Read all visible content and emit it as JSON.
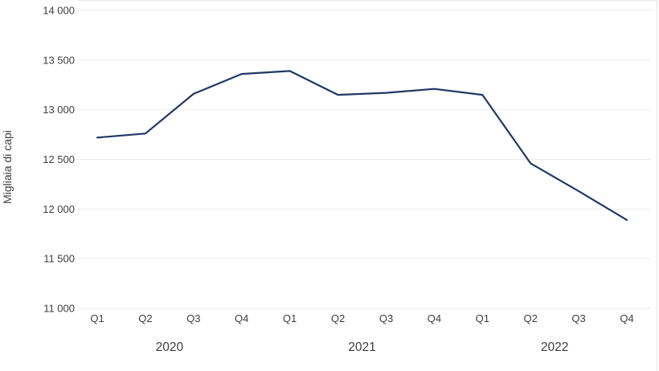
{
  "chart_data": {
    "type": "line",
    "title": "",
    "xlabel": "",
    "ylabel": "Migliaia di capi",
    "ylim": [
      11000,
      14000
    ],
    "ytick_step": 500,
    "grid": "horizontal",
    "legend_position": "none",
    "yticks": [
      {
        "value": 11000,
        "label": "11 000"
      },
      {
        "value": 11500,
        "label": "11 500"
      },
      {
        "value": 12000,
        "label": "12 000"
      },
      {
        "value": 12500,
        "label": "12 500"
      },
      {
        "value": 13000,
        "label": "13 000"
      },
      {
        "value": 13500,
        "label": "13 500"
      },
      {
        "value": 14000,
        "label": "14 000"
      }
    ],
    "categories": [
      "Q1",
      "Q2",
      "Q3",
      "Q4",
      "Q1",
      "Q2",
      "Q3",
      "Q4",
      "Q1",
      "Q2",
      "Q3",
      "Q4"
    ],
    "year_groups": [
      {
        "label": "2020",
        "quarters": [
          0,
          3
        ]
      },
      {
        "label": "2021",
        "quarters": [
          4,
          7
        ]
      },
      {
        "label": "2022",
        "quarters": [
          8,
          11
        ]
      }
    ],
    "values": [
      12720,
      12760,
      13160,
      13360,
      13390,
      13150,
      13170,
      13210,
      13150,
      12460,
      12180,
      11890
    ],
    "line_color": "#1f3864",
    "grid_color": "#eaeaea",
    "frame_color": "#e3e3e3",
    "text_color": "#3d3d3d"
  }
}
